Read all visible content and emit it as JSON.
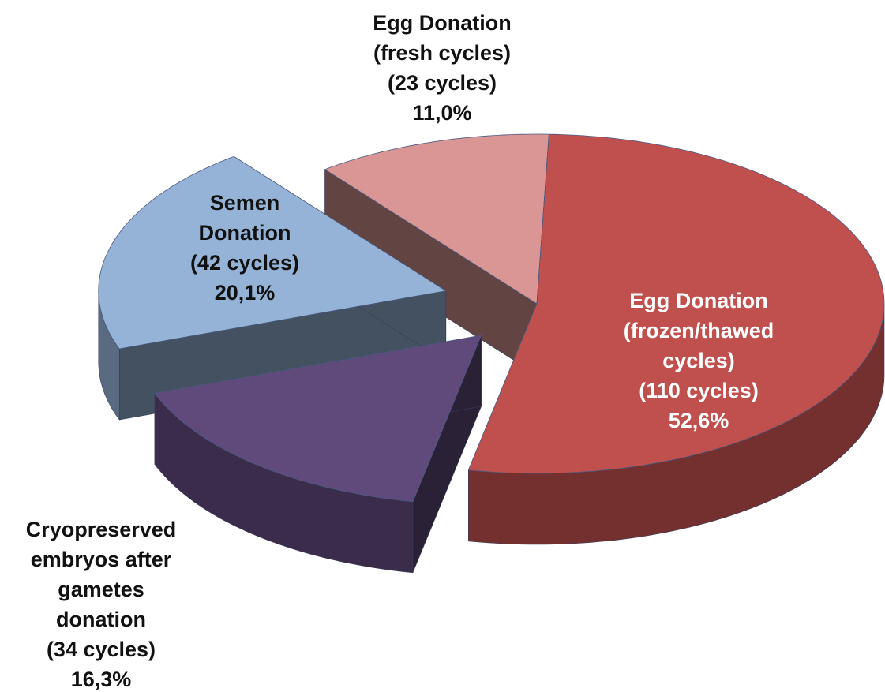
{
  "chart_data": {
    "type": "pie",
    "categories": [
      "Egg Donation (frozen/thawed cycles)",
      "Cryopreserved embryos after gametes donation",
      "Semen Donation",
      "Egg Donation (fresh cycles)"
    ],
    "counts": [
      110,
      34,
      42,
      23
    ],
    "count_labels": [
      "(110 cycles)",
      "(34 cycles)",
      "(42 cycles)",
      "(23 cycles)"
    ],
    "values": [
      52.6,
      16.3,
      20.1,
      11.0
    ],
    "value_labels": [
      "52,6%",
      "16,3%",
      "20,1%",
      "11,0%"
    ],
    "colors": [
      "#c0504d",
      "#604a7b",
      "#95b3d7",
      "#d99694"
    ]
  }
}
